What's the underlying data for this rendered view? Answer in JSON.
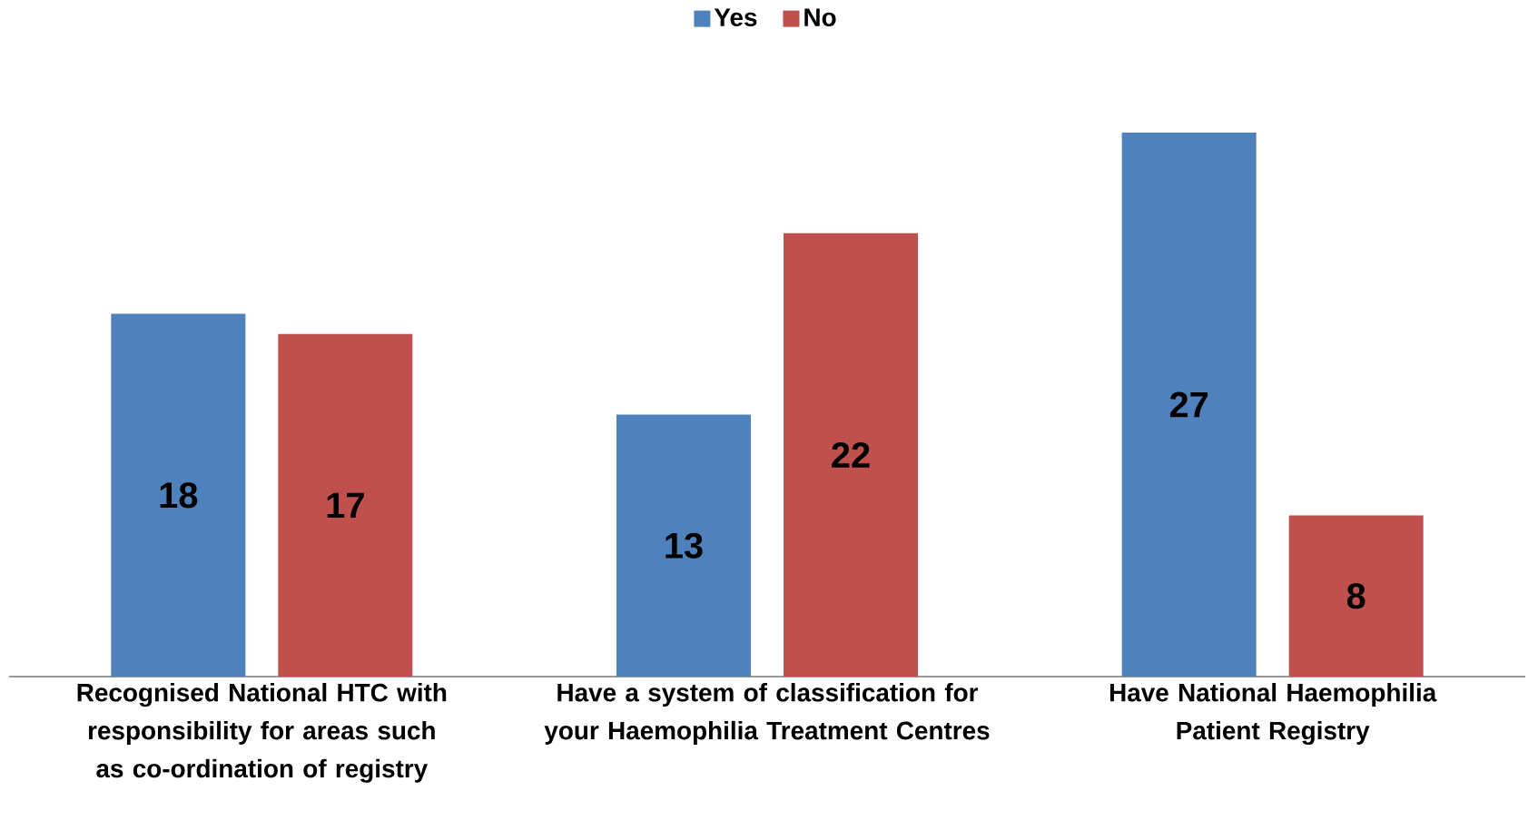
{
  "chart_data": {
    "type": "bar",
    "categories": [
      "Recognised National HTC with responsibility for areas such as co-ordination of registry",
      "Have a system of classification  for your Haemophilia Treatment Centres",
      "Have National Haemophilia Patient Registry"
    ],
    "series": [
      {
        "name": "Yes",
        "color": "#4f81bd",
        "values": [
          18,
          13,
          27
        ]
      },
      {
        "name": "No",
        "color": "#c0504d",
        "values": [
          17,
          22,
          8
        ]
      }
    ],
    "data_labels": true,
    "legend": "top"
  }
}
